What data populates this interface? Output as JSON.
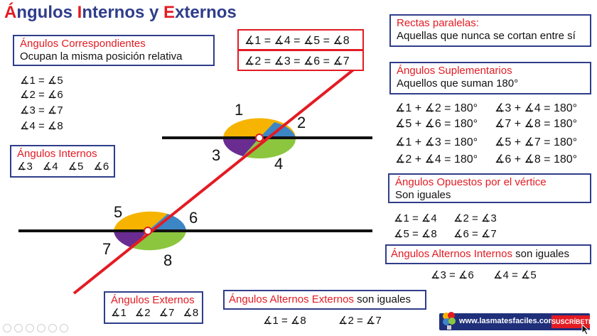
{
  "title": {
    "p1": "Á",
    "p2": "ngulos ",
    "p3": "I",
    "p4": "nternos y ",
    "p5": "E",
    "p6": "xternos"
  },
  "correspondientes": {
    "header": "Ángulos Correspondientes",
    "desc": "Ocupan la misma posición relativa",
    "equalities": [
      "∡1 = ∡5",
      "∡2 = ∡6",
      "∡3 = ∡7",
      "∡4 = ∡8"
    ]
  },
  "top_box": {
    "line1": "∡1 = ∡4 = ∡5 = ∡8",
    "line2": "∡2 = ∡3 = ∡6 = ∡7"
  },
  "paralelas": {
    "header": "Rectas paralelas:",
    "desc": "Aquellas que nunca se cortan entre sí"
  },
  "suplementarios": {
    "header": "Ángulos Suplementarios",
    "desc": "Aquellos que suman 180°",
    "equalities": [
      "∡1 + ∡2 = 180°",
      "∡3 + ∡4 = 180°",
      "∡5 + ∡6 = 180°",
      "∡7 + ∡8 = 180°",
      "∡1 + ∡3 = 180°",
      "∡5 + ∡7 = 180°",
      "∡2 + ∡4 = 180°",
      "∡6 + ∡8 = 180°"
    ]
  },
  "internos": {
    "header": "Ángulos Internos",
    "items": [
      "∡3",
      "∡4",
      "∡5",
      "∡6"
    ]
  },
  "externos": {
    "header": "Ángulos Externos",
    "items": [
      "∡1",
      "∡2",
      "∡7",
      "∡8"
    ]
  },
  "opuestos": {
    "header": "Ángulos Opuestos por el vértice",
    "desc": "Son iguales",
    "equalities": [
      "∡1 = ∡4",
      "∡2 = ∡3",
      "∡5 = ∡8",
      "∡6 = ∡7"
    ]
  },
  "alternos_internos": {
    "header": "Ángulos Alternos Internos",
    "suffix": " son iguales",
    "equalities": [
      "∡3 = ∡6",
      "∡4 = ∡5"
    ]
  },
  "alternos_externos": {
    "header": "Ángulos Alternos Externos",
    "suffix": " son iguales",
    "equalities": [
      "∡1 = ∡8",
      "∡2 = ∡7"
    ]
  },
  "diagram_labels": [
    "1",
    "2",
    "3",
    "4",
    "5",
    "6",
    "7",
    "8"
  ],
  "colors": {
    "red": "#e31b23",
    "navy": "#2f3d8a",
    "orange": "#f6b400",
    "blue": "#3d86c6",
    "purple": "#6a2c91",
    "green": "#8cc63f"
  },
  "footer": {
    "url": "www.lasmatesfaciles.com",
    "subscribe": "SUSCRÍBETE"
  }
}
